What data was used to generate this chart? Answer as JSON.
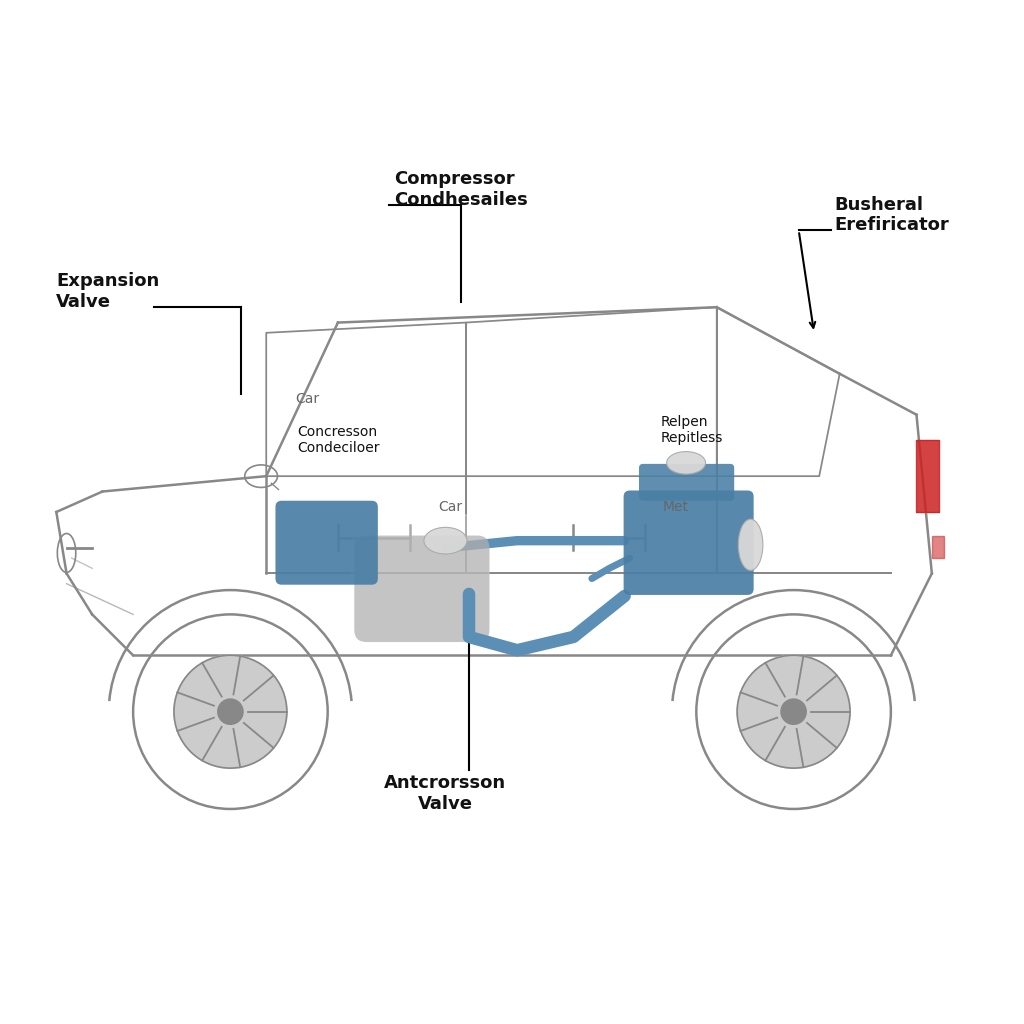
{
  "background_color": "#ffffff",
  "car_outline_color": "#888888",
  "blue_component_color": "#4a7fa5",
  "blue_pipe_color": "#5b8fb5",
  "grey_pipe_color": "#b0b0b0",
  "red_accent_color": "#cc2222",
  "label_color": "#111111",
  "label_compressor": "Compressor\nCondhesailes",
  "label_busheral": "Busheral\nErefiricator",
  "label_expansion": "Expansion\nValve",
  "label_concresson": "Concresson\nCondeciloer",
  "label_car1": "Car",
  "label_met": "Met",
  "label_car2": "Car",
  "label_relpen": "Relpen\nRepitless",
  "label_antcrorsson": "Antcrorsson\nValve"
}
